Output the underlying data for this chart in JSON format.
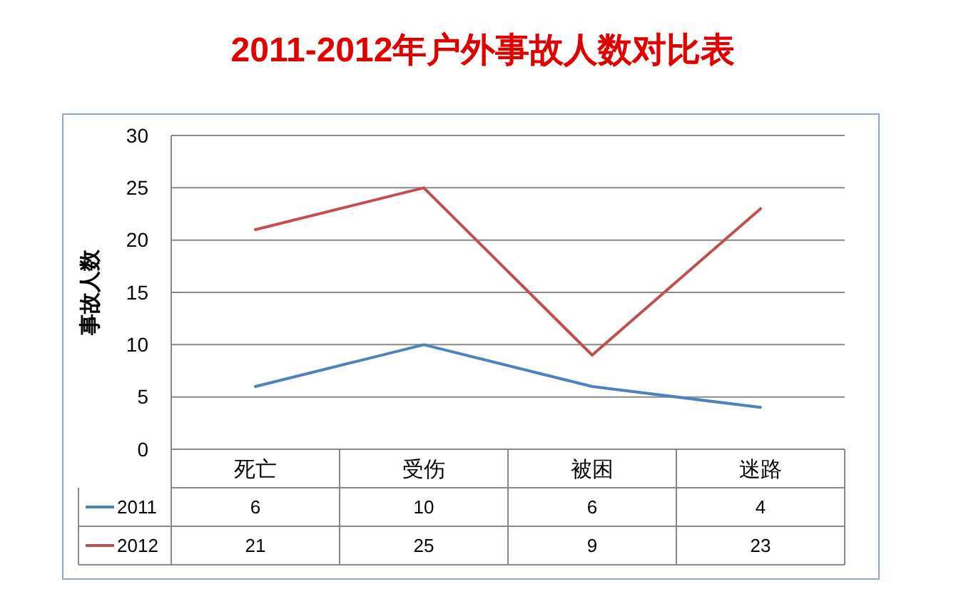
{
  "chart_data": {
    "type": "line",
    "title": "2011-2012年户外事故人数对比表",
    "ylabel": "事故人数",
    "categories": [
      "死亡",
      "受伤",
      "被困",
      "迷路"
    ],
    "series": [
      {
        "name": "2011",
        "color": "#4f81bd",
        "values": [
          6,
          10,
          6,
          4
        ]
      },
      {
        "name": "2012",
        "color": "#c0504d",
        "values": [
          21,
          25,
          9,
          23
        ]
      }
    ],
    "ylim": [
      0,
      30
    ],
    "yticks": [
      0,
      5,
      10,
      15,
      20,
      25,
      30
    ],
    "grid": "y",
    "legend": "bottom",
    "data_labels": true,
    "marker": "none",
    "line_style": "solid"
  }
}
